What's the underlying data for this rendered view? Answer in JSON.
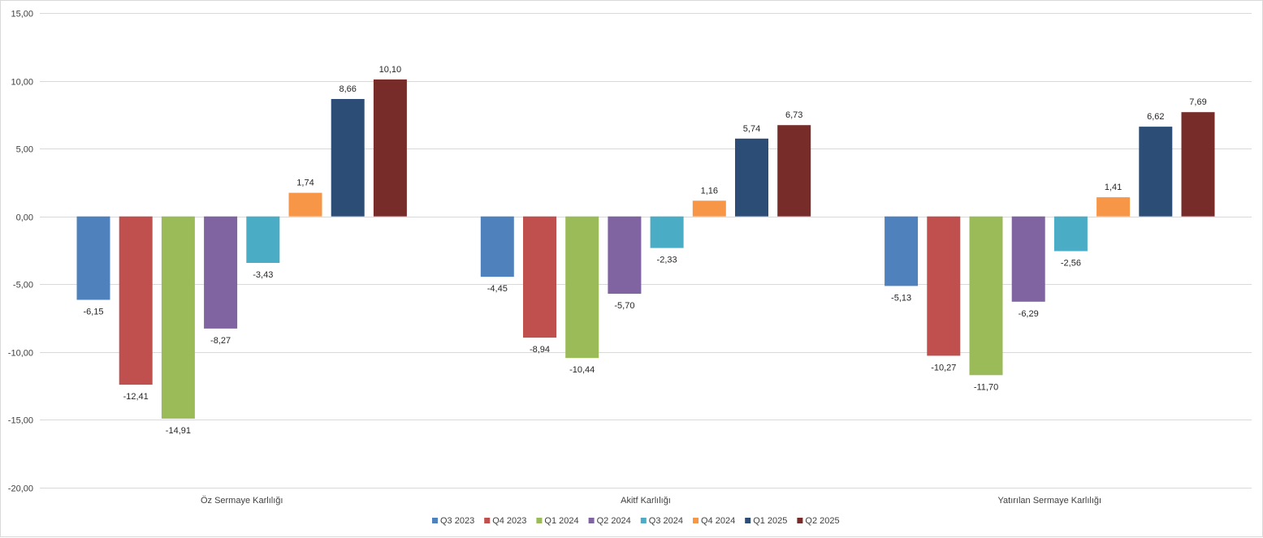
{
  "chart_data": {
    "type": "bar",
    "title": "",
    "xlabel": "",
    "ylabel": "",
    "ylim": [
      -20,
      15
    ],
    "yticks": [
      15,
      10,
      5,
      0,
      -5,
      -10,
      -15,
      -20
    ],
    "ytick_labels": [
      "15,00",
      "10,00",
      "5,00",
      "0,00",
      "-5,00",
      "-10,00",
      "-15,00",
      "-20,00"
    ],
    "grid": true,
    "legend_position": "bottom",
    "categories": [
      "Öz Sermaye Karlılığı",
      "Akitf Karlılığı",
      "Yatırılan Sermaye Karlılığı"
    ],
    "series": [
      {
        "name": "Q3 2023",
        "color": "#4f81bd",
        "values": [
          -6.15,
          -4.45,
          -5.13
        ],
        "labels": [
          "-6,15",
          "-4,45",
          "-5,13"
        ]
      },
      {
        "name": "Q4 2023",
        "color": "#c0504d",
        "values": [
          -12.41,
          -8.94,
          -10.27
        ],
        "labels": [
          "-12,41",
          "-8,94",
          "-10,27"
        ]
      },
      {
        "name": "Q1 2024",
        "color": "#9bbb59",
        "values": [
          -14.91,
          -10.44,
          -11.7
        ],
        "labels": [
          "-14,91",
          "-10,44",
          "-11,70"
        ]
      },
      {
        "name": "Q2 2024",
        "color": "#8064a2",
        "values": [
          -8.27,
          -5.7,
          -6.29
        ],
        "labels": [
          "-8,27",
          "-5,70",
          "-6,29"
        ]
      },
      {
        "name": "Q3 2024",
        "color": "#4bacc6",
        "values": [
          -3.43,
          -2.33,
          -2.56
        ],
        "labels": [
          "-3,43",
          "-2,33",
          "-2,56"
        ]
      },
      {
        "name": "Q4 2024",
        "color": "#f79646",
        "values": [
          1.74,
          1.16,
          1.41
        ],
        "labels": [
          "1,74",
          "1,16",
          "1,41"
        ]
      },
      {
        "name": "Q1 2025",
        "color": "#2c4d75",
        "values": [
          8.66,
          5.74,
          6.62
        ],
        "labels": [
          "8,66",
          "5,74",
          "6,62"
        ]
      },
      {
        "name": "Q2 2025",
        "color": "#772c2a",
        "values": [
          10.1,
          6.73,
          7.69
        ],
        "labels": [
          "10,10",
          "6,73",
          "7,69"
        ]
      }
    ]
  }
}
